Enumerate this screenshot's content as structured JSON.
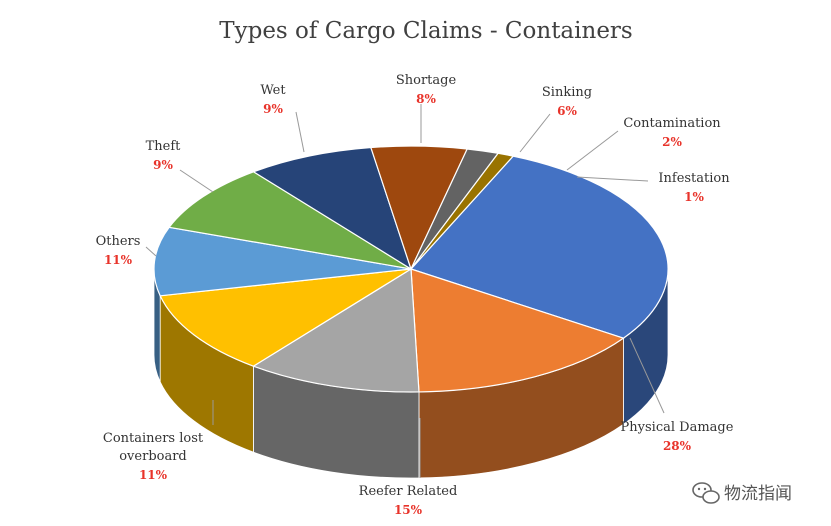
{
  "chart_data": {
    "type": "pie",
    "title": "Types of Cargo Claims - Containers",
    "slices": [
      {
        "name": "Physical Damage",
        "value": 28,
        "label": "28%",
        "color": "#4472c4"
      },
      {
        "name": "Reefer Related",
        "value": 15,
        "label": "15%",
        "color": "#ed7d31"
      },
      {
        "name": "Containers lost overboard",
        "name_lines": [
          "Containers lost",
          "overboard"
        ],
        "value": 11,
        "label": "11%",
        "color": "#a5a5a5"
      },
      {
        "name": "Others",
        "value": 11,
        "label": "11%",
        "color": "#ffc000"
      },
      {
        "name": "Theft",
        "value": 9,
        "label": "9%",
        "color": "#5b9bd5"
      },
      {
        "name": "Wet",
        "value": 9,
        "label": "9%",
        "color": "#70ad47"
      },
      {
        "name": "Shortage",
        "value": 8,
        "label": "8%",
        "color": "#264478"
      },
      {
        "name": "Sinking",
        "value": 6,
        "label": "6%",
        "color": "#9e480e"
      },
      {
        "name": "Contamination",
        "value": 2,
        "label": "2%",
        "color": "#636363"
      },
      {
        "name": "Infestation",
        "value": 1,
        "label": "1%",
        "color": "#997300"
      }
    ],
    "legend": "none",
    "style": "3d-pie"
  },
  "watermark": {
    "text": "物流指闻",
    "icon": "wechat-icon"
  }
}
